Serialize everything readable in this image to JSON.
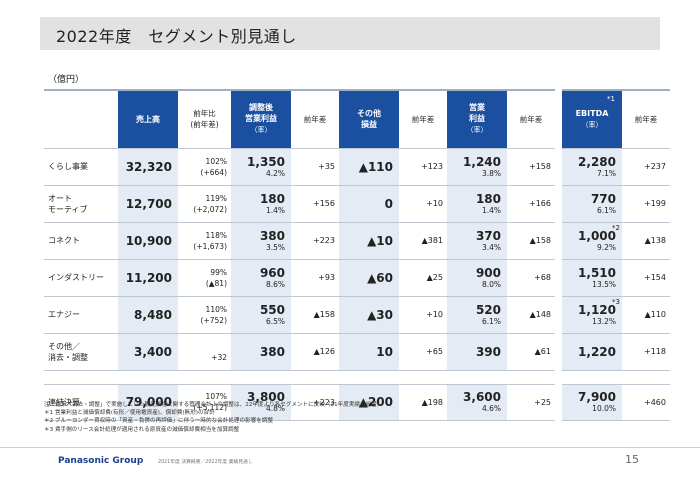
{
  "title": "2022年度　セグメント別見通し",
  "unit": "（億円）",
  "headers": {
    "sales": "売上高",
    "sales_yoy": "前年比\n(前年差)",
    "adj_op": "調整後\n営業利益",
    "adj_op_rate": "（率）",
    "diff1": "前年差",
    "other": "その他\n損益",
    "diff2": "前年差",
    "op": "営業\n利益",
    "op_rate": "（率）",
    "diff3": "前年差",
    "ebitda": "EBITDA",
    "ebitda_rate": "（率）",
    "ebitda_note": "*1",
    "diff4": "前年差"
  },
  "rows": [
    {
      "label": "くらし事業",
      "sales": "32,320",
      "yoy": "102%",
      "yoy_diff": "(+664)",
      "adj_op": "1,350",
      "adj_op_rate": "4.2%",
      "adj_diff": "+35",
      "other": "▲110",
      "other_diff": "+123",
      "op": "1,240",
      "op_rate": "3.8%",
      "op_diff": "+158",
      "ebitda": "2,280",
      "ebitda_rate": "7.1%",
      "ebitda_note": "",
      "ebitda_diff": "+237"
    },
    {
      "label": "オート\nモーティブ",
      "sales": "12,700",
      "yoy": "119%",
      "yoy_diff": "(+2,072)",
      "adj_op": "180",
      "adj_op_rate": "1.4%",
      "adj_diff": "+156",
      "other": "0",
      "other_diff": "+10",
      "op": "180",
      "op_rate": "1.4%",
      "op_diff": "+166",
      "ebitda": "770",
      "ebitda_rate": "6.1%",
      "ebitda_note": "",
      "ebitda_diff": "+199"
    },
    {
      "label": "コネクト",
      "sales": "10,900",
      "yoy": "118%",
      "yoy_diff": "(+1,673)",
      "adj_op": "380",
      "adj_op_rate": "3.5%",
      "adj_diff": "+223",
      "other": "▲10",
      "other_diff": "▲381",
      "op": "370",
      "op_rate": "3.4%",
      "op_diff": "▲158",
      "ebitda": "1,000",
      "ebitda_rate": "9.2%",
      "ebitda_note": "*2",
      "ebitda_diff": "▲138"
    },
    {
      "label": "インダストリー",
      "sales": "11,200",
      "yoy": "99%",
      "yoy_diff": "(▲81)",
      "adj_op": "960",
      "adj_op_rate": "8.6%",
      "adj_diff": "+93",
      "other": "▲60",
      "other_diff": "▲25",
      "op": "900",
      "op_rate": "8.0%",
      "op_diff": "+68",
      "ebitda": "1,510",
      "ebitda_rate": "13.5%",
      "ebitda_note": "",
      "ebitda_diff": "+154"
    },
    {
      "label": "エナジー",
      "sales": "8,480",
      "yoy": "110%",
      "yoy_diff": "(+752)",
      "adj_op": "550",
      "adj_op_rate": "6.5%",
      "adj_diff": "▲158",
      "other": "▲30",
      "other_diff": "+10",
      "op": "520",
      "op_rate": "6.1%",
      "op_diff": "▲148",
      "ebitda": "1,120",
      "ebitda_rate": "13.2%",
      "ebitda_note": "*3",
      "ebitda_diff": "▲110"
    },
    {
      "label": "その他／\n消去・調整",
      "sales": "3,400",
      "yoy": "",
      "yoy_diff": "+32",
      "adj_op": "380",
      "adj_op_rate": "",
      "adj_diff": "▲126",
      "other": "10",
      "other_diff": "+65",
      "op": "390",
      "op_rate": "",
      "op_diff": "▲61",
      "ebitda": "1,220",
      "ebitda_rate": "",
      "ebitda_note": "",
      "ebitda_diff": "+118"
    }
  ],
  "total": {
    "label": "連結決算",
    "sales": "79,000",
    "yoy": "107%",
    "yoy_diff": "(+5,112)",
    "adj_op": "3,800",
    "adj_op_rate": "4.8%",
    "adj_diff": "+223",
    "other": "▲200",
    "other_diff": "▲198",
    "op": "3,600",
    "op_rate": "4.6%",
    "op_diff": "+25",
    "ebitda": "7,900",
    "ebitda_rate": "10.0%",
    "ebitda_note": "",
    "ebitda_diff": "+460"
  },
  "notes": [
    "注：従来「消去・調整」で実施していた販売価格に関する管理会計上の調整は、22年度より各セグメントに反映（21年度実績も組替）",
    "＊1 営業利益と減価償却費(有形／使用権資産)、償却費(無形)の合計",
    "＊2 ブルーヨンダー買収時の「資産・負債の再評価」に伴う一時的な会計処理の影響を調整",
    "＊3 賃手側のリース会計処理が適用される原資産の減価償却費相当を加算調整"
  ],
  "footer": {
    "logo": "Panasonic Group",
    "text": "2021年度 決算概要／2022年度 業績見通し",
    "page": "15"
  }
}
